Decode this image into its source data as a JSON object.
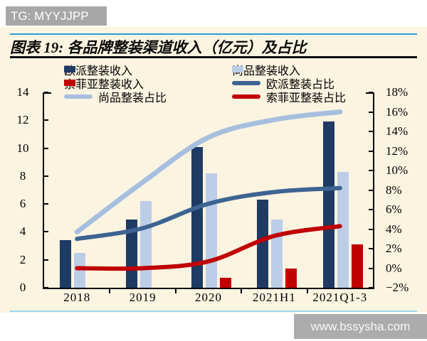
{
  "badge": {
    "text": "TG: MYYJJPP"
  },
  "panel": {
    "title": "图表 19: 各品牌整装渠道收入（亿元）及占比"
  },
  "watermark": {
    "text": "www.bssysha.com"
  },
  "colors": {
    "oupai_bar": "#1f3a63",
    "shangpin_bar": "#bccde8",
    "sofia_bar": "#c00000",
    "oupai_line": "#3d6392",
    "shangpin_line": "#a7bfdf",
    "sofia_line": "#c00000",
    "accent_rule": "#2e9bd5",
    "bottom_rule": "#9cd5e8",
    "panel_bg": "#fbf4e1",
    "axis": "#000000"
  },
  "chart_data": {
    "type": "bar",
    "subtype": "combo bar + smoothed line, dual axis",
    "title": "各品牌整装渠道收入（亿元）及占比",
    "categories": [
      "2018",
      "2019",
      "2020",
      "2021H1",
      "2021Q1-3"
    ],
    "bar_series": [
      {
        "name": "欧派整装收入",
        "axis": "left",
        "color_key": "oupai_bar",
        "values": [
          3.4,
          4.9,
          10.1,
          6.3,
          11.9
        ]
      },
      {
        "name": "尚品整装收入",
        "axis": "left",
        "color_key": "shangpin_bar",
        "values": [
          2.5,
          6.2,
          8.2,
          4.9,
          8.3
        ]
      },
      {
        "name": "索菲亚整装收入",
        "axis": "left",
        "color_key": "sofia_bar",
        "values": [
          0,
          0,
          0.7,
          1.4,
          3.1
        ]
      }
    ],
    "line_series": [
      {
        "name": "尚品整装占比",
        "axis": "right",
        "color_key": "shangpin_line",
        "stroke": 7,
        "values": [
          3.7,
          8.8,
          13.4,
          15.2,
          16.0
        ]
      },
      {
        "name": "欧派整装占比",
        "axis": "right",
        "color_key": "oupai_line",
        "stroke": 6,
        "values": [
          3.0,
          4.1,
          6.6,
          7.8,
          8.2
        ]
      },
      {
        "name": "索菲亚整装占比",
        "axis": "right",
        "color_key": "sofia_line",
        "stroke": 6,
        "values": [
          0.0,
          0.0,
          0.7,
          3.3,
          4.3
        ]
      }
    ],
    "left_axis": {
      "min": 0,
      "max": 14,
      "step": 2,
      "labels": [
        "0",
        "2",
        "4",
        "6",
        "8",
        "10",
        "12",
        "14"
      ],
      "unit": "亿元"
    },
    "right_axis": {
      "min": -2,
      "max": 18,
      "step": 2,
      "labels": [
        "−2%",
        "0%",
        "2%",
        "4%",
        "6%",
        "8%",
        "10%",
        "12%",
        "14%",
        "16%",
        "18%"
      ],
      "unit": "%"
    },
    "legend": [
      {
        "label": "欧派整装收入",
        "swatch": "bar",
        "color_key": "oupai_bar"
      },
      {
        "label": "尚品整装收入",
        "swatch": "bar",
        "color_key": "shangpin_bar"
      },
      {
        "label": "索菲亚整装收入",
        "swatch": "bar",
        "color_key": "sofia_bar"
      },
      {
        "label": "欧派整装占比",
        "swatch": "line",
        "color_key": "oupai_line"
      },
      {
        "label": "尚品整装占比",
        "swatch": "line",
        "color_key": "shangpin_line"
      },
      {
        "label": "索菲亚整装占比",
        "swatch": "line",
        "color_key": "sofia_line"
      }
    ],
    "grid": false,
    "legend_position": "top"
  }
}
